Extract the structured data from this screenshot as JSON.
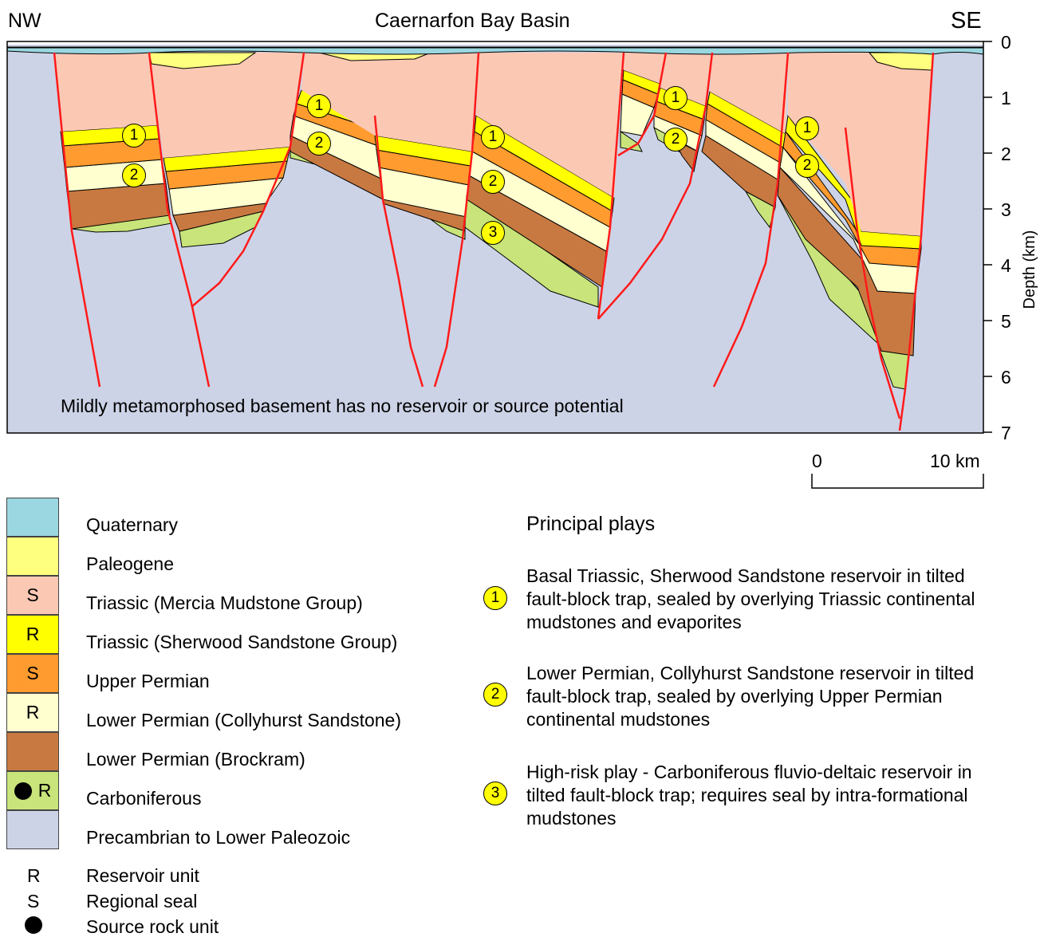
{
  "title": "Caernarfon Bay Basin",
  "orientation": {
    "left": "NW",
    "right": "SE"
  },
  "depth_axis": {
    "label": "Depth (km)",
    "ticks": [
      "0",
      "1",
      "2",
      "3",
      "4",
      "5",
      "6",
      "7"
    ]
  },
  "scale_bar": {
    "start": "0",
    "end": "10 km"
  },
  "basement_note": "Mildly metamorphosed basement has no reservoir or source potential",
  "colors": {
    "quaternary": "#9bd7e0",
    "paleogene": "#ffff7f",
    "mercia": "#fbc8b4",
    "sherwood": "#ffff00",
    "upper_permian": "#ff9b2f",
    "collyhurst": "#ffffcf",
    "brockram": "#c87941",
    "carboniferous": "#c8e47a",
    "basement": "#cdd3e6",
    "fault": "#ff1a1a",
    "play_marker": "#ffff00"
  },
  "legend": [
    {
      "label": "Quaternary",
      "code": ""
    },
    {
      "label": "Paleogene",
      "code": ""
    },
    {
      "label": "Triassic (Mercia Mudstone Group)",
      "code": "S"
    },
    {
      "label": "Triassic (Sherwood Sandstone Group)",
      "code": "R"
    },
    {
      "label": "Upper Permian",
      "code": "S"
    },
    {
      "label": "Lower Permian (Collyhurst Sandstone)",
      "code": "R"
    },
    {
      "label": "Lower Permian (Brockram)",
      "code": ""
    },
    {
      "label": "Carboniferous",
      "code": "R",
      "source": true
    },
    {
      "label": "Precambrian to Lower Paleozoic",
      "code": ""
    }
  ],
  "key": [
    {
      "symbol": "R",
      "label": "Reservoir unit"
    },
    {
      "symbol": "S",
      "label": "Regional seal"
    },
    {
      "symbol": "dot",
      "label": "Source rock unit"
    }
  ],
  "plays": {
    "heading": "Principal plays",
    "items": [
      {
        "num": "1",
        "text": "Basal Triassic, Sherwood Sandstone reservoir in tilted fault-block trap, sealed by overlying Triassic continental mudstones and evaporites"
      },
      {
        "num": "2",
        "text": "Lower Permian, Collyhurst Sandstone reservoir in tilted fault-block trap, sealed by overlying Upper Permian continental mudstones"
      },
      {
        "num": "3",
        "text": "High-risk play - Carboniferous fluvio-deltaic reservoir in tilted fault-block trap; requires seal by intra-formational mudstones"
      }
    ]
  },
  "section_markers": [
    "1",
    "2",
    "1",
    "2",
    "1",
    "2",
    "3",
    "1",
    "2",
    "1",
    "2"
  ]
}
